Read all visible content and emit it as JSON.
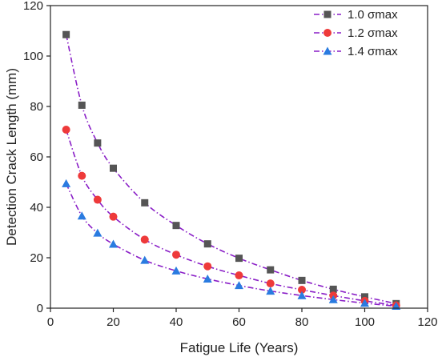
{
  "chart_data": {
    "type": "line",
    "title": "",
    "xlabel": "Fatigue Life (Years)",
    "ylabel": "Detection Crack Length (mm)",
    "xlim": [
      0,
      120
    ],
    "ylim": [
      0,
      120
    ],
    "xticks": [
      0,
      20,
      40,
      60,
      80,
      100,
      120
    ],
    "yticks": [
      0,
      20,
      40,
      60,
      80,
      100,
      120
    ],
    "grid": false,
    "legend_position": "top-right",
    "x": [
      5,
      10,
      15,
      20,
      30,
      40,
      50,
      60,
      70,
      80,
      90,
      100,
      110
    ],
    "series": [
      {
        "name": "1.0 σmax",
        "marker": "square",
        "marker_color": "#555555",
        "line_color": "#8a1fc7",
        "values": [
          108.5,
          80.5,
          65.5,
          55.5,
          41.8,
          32.8,
          25.5,
          19.8,
          15.2,
          11.0,
          7.5,
          4.5,
          1.8
        ]
      },
      {
        "name": "1.2 σmax",
        "marker": "circle",
        "marker_color": "#ee3a3a",
        "line_color": "#8a1fc7",
        "values": [
          70.8,
          52.5,
          43.0,
          36.3,
          27.2,
          21.2,
          16.6,
          13.0,
          9.8,
          7.3,
          5.0,
          2.9,
          1.1
        ]
      },
      {
        "name": "1.4 σmax",
        "marker": "triangle",
        "marker_color": "#2a7be0",
        "line_color": "#8a1fc7",
        "values": [
          49.4,
          36.6,
          29.8,
          25.4,
          19.0,
          14.8,
          11.6,
          9.0,
          6.8,
          5.0,
          3.4,
          2.0,
          0.8
        ]
      }
    ]
  }
}
